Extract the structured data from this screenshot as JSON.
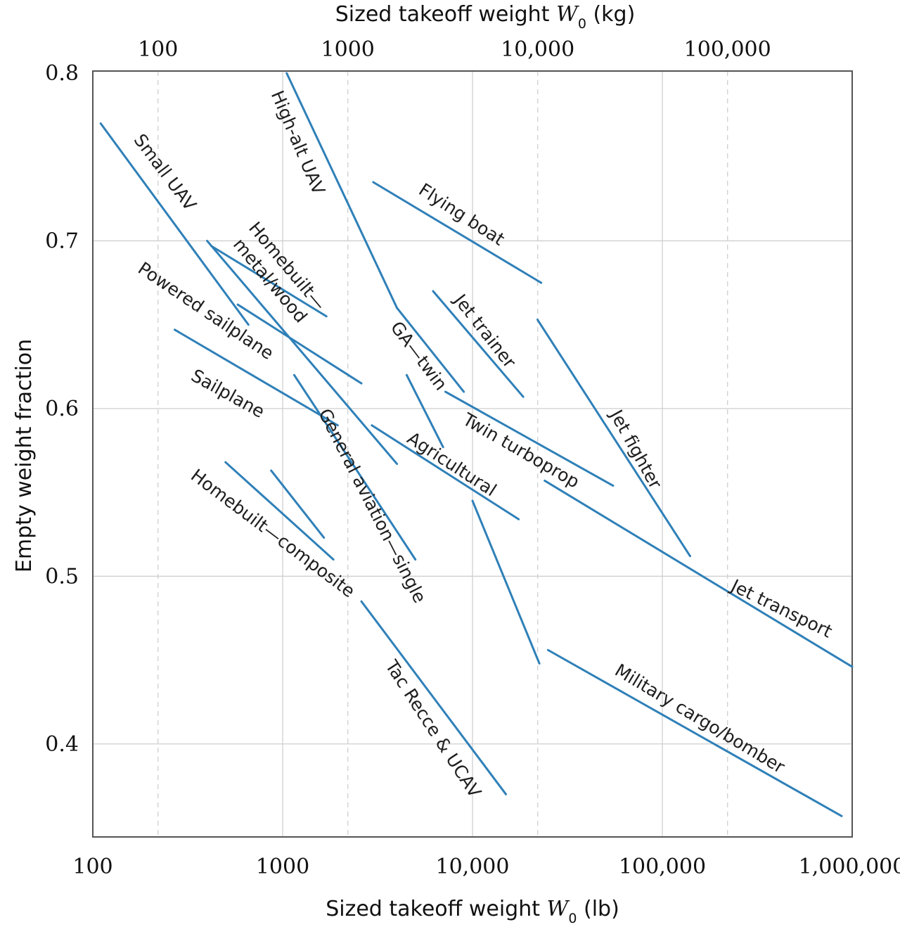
{
  "chart_data": {
    "type": "line",
    "title": "",
    "x_axis_bottom": {
      "label_prefix": "Sized takeoff weight ",
      "symbol": "W",
      "subscript": "0",
      "unit": " (lb)",
      "scale": "log",
      "range": [
        100,
        1000000
      ],
      "ticks": [
        100,
        1000,
        10000,
        100000,
        1000000
      ],
      "tick_labels": [
        "100",
        "1000",
        "10,000",
        "100,000",
        "1,000,000"
      ]
    },
    "x_axis_top": {
      "label_prefix": "Sized takeoff weight ",
      "symbol": "W",
      "subscript": "0",
      "unit": " (kg)",
      "scale": "log",
      "ticks": [
        100,
        1000,
        10000,
        100000
      ],
      "tick_labels": [
        "100",
        "1000",
        "10,000",
        "100,000"
      ]
    },
    "y_axis": {
      "label": "Empty weight fraction",
      "range": [
        0.35,
        0.8
      ],
      "ticks": [
        0.4,
        0.5,
        0.6,
        0.7,
        0.8
      ],
      "tick_labels": [
        "0.4",
        "0.5",
        "0.6",
        "0.7",
        "0.8"
      ]
    },
    "grid": true,
    "series": [
      {
        "name": "Small UAV",
        "segments": [
          [
            [
              110,
              0.77
            ],
            [
              660,
              0.65
            ]
          ]
        ]
      },
      {
        "name": "High-alt UAV",
        "segments": [
          [
            [
              1050,
              0.8
            ],
            [
              4000,
              0.66
            ]
          ]
        ]
      },
      {
        "name": "Homebuilt—metal/wood",
        "segments": [
          [
            [
              420,
              0.697
            ],
            [
              1700,
              0.655
            ]
          ],
          [
            [
              580,
              0.662
            ],
            [
              2600,
              0.615
            ]
          ]
        ]
      },
      {
        "name": "Powered sailplane",
        "segments": [
          [
            [
              400,
              0.7
            ],
            [
              4000,
              0.567
            ]
          ]
        ]
      },
      {
        "name": "Sailplane",
        "segments": [
          [
            [
              270,
              0.647
            ],
            [
              1950,
              0.59
            ]
          ]
        ]
      },
      {
        "name": "General aviation—single",
        "segments": [
          [
            [
              1150,
              0.62
            ],
            [
              5000,
              0.51
            ]
          ]
        ]
      },
      {
        "name": "GA—twin",
        "segments": [
          [
            [
              4000,
              0.66
            ],
            [
              9000,
              0.61
            ]
          ],
          [
            [
              4500,
              0.62
            ],
            [
              7000,
              0.577
            ]
          ]
        ]
      },
      {
        "name": "Flying boat",
        "segments": [
          [
            [
              3000,
              0.735
            ],
            [
              23000,
              0.675
            ]
          ]
        ]
      },
      {
        "name": "Jet trainer",
        "segments": [
          [
            [
              6200,
              0.67
            ],
            [
              18500,
              0.607
            ]
          ]
        ]
      },
      {
        "name": "Jet fighter",
        "segments": [
          [
            [
              22000,
              0.653
            ],
            [
              140000,
              0.512
            ]
          ]
        ]
      },
      {
        "name": "Twin turboprop",
        "segments": [
          [
            [
              7200,
              0.61
            ],
            [
              55000,
              0.554
            ]
          ]
        ]
      },
      {
        "name": "Agricultural",
        "segments": [
          [
            [
              2950,
              0.59
            ],
            [
              17500,
              0.534
            ]
          ]
        ]
      },
      {
        "name": "Jet transport",
        "segments": [
          [
            [
              24000,
              0.557
            ],
            [
              1000000,
              0.446
            ]
          ]
        ]
      },
      {
        "name": "Military cargo/bomber",
        "segments": [
          [
            [
              10000,
              0.545
            ],
            [
              22500,
              0.448
            ]
          ],
          [
            [
              25000,
              0.456
            ],
            [
              880000,
              0.357
            ]
          ]
        ]
      },
      {
        "name": "Homebuilt—composite",
        "segments": [
          [
            [
              500,
              0.568
            ],
            [
              1850,
              0.51
            ]
          ],
          [
            [
              870,
              0.563
            ],
            [
              1650,
              0.523
            ]
          ]
        ]
      },
      {
        "name": "Tac Recce & UCAV",
        "segments": [
          [
            [
              2600,
              0.485
            ],
            [
              15000,
              0.37
            ]
          ]
        ]
      }
    ]
  }
}
